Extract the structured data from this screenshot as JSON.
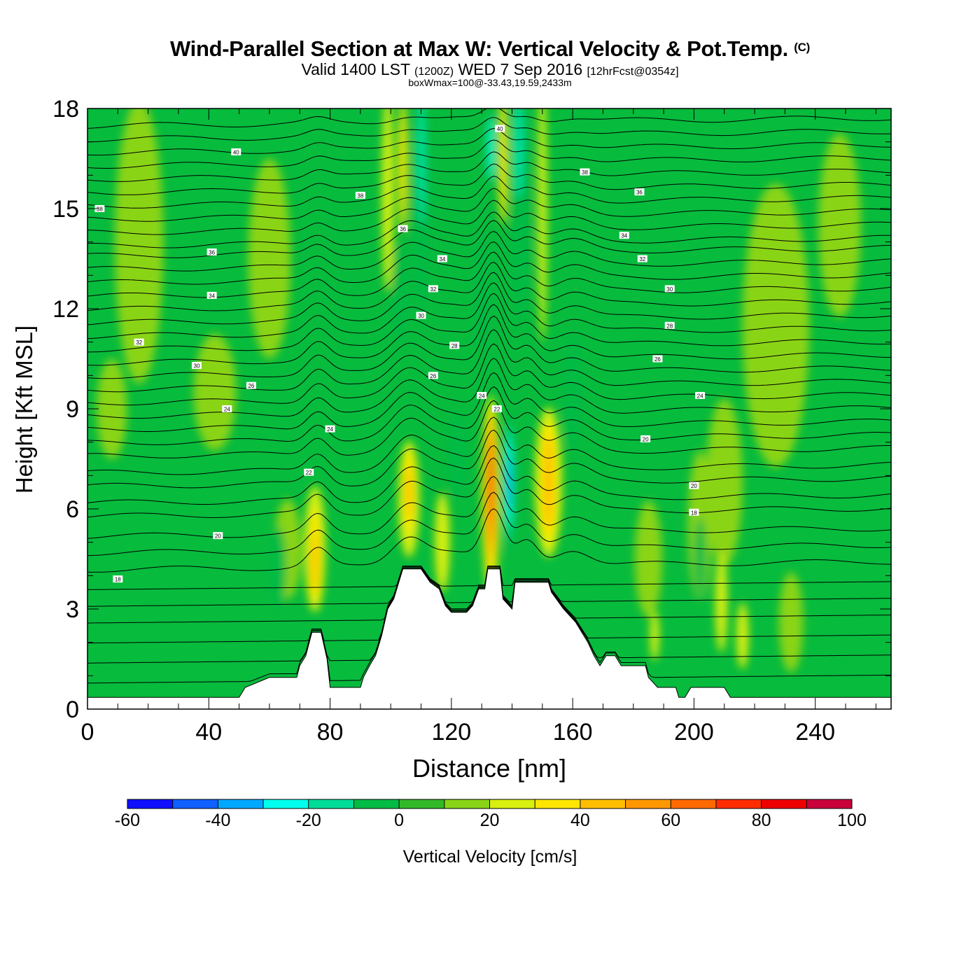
{
  "header": {
    "title_main": "Wind-Parallel Section at Max W: Vertical Velocity & Pot.Temp.",
    "title_mark": "(C)",
    "valid_prefix": "Valid 1400 LST",
    "valid_zulu": "(1200Z)",
    "valid_date": "WED 7 Sep 2016",
    "forecast": "[12hrFcst@0354z]",
    "box_info": "boxWmax=100@-33.43,19.59,2433m"
  },
  "colors": {
    "palette": [
      "#1010ff",
      "#1060ff",
      "#00a8ff",
      "#00ffee",
      "#00dd99",
      "#00bb44",
      "#33b828",
      "#8ad417",
      "#d8ef10",
      "#ffe600",
      "#ffbe00",
      "#ff9800",
      "#ff6a00",
      "#ff2d00",
      "#ee0000",
      "#c8003c"
    ],
    "contour": "#000000",
    "terrain": "#ffffff",
    "background": "#07bb3d"
  },
  "chart_data": {
    "type": "heatmap",
    "title": "Wind-Parallel Section at Max W: Vertical Velocity & Pot.Temp.",
    "xlabel": "Distance [nm]",
    "ylabel": "Height [Kft MSL]",
    "xlim": [
      0,
      265
    ],
    "ylim": [
      0,
      18
    ],
    "x_ticks": [
      0,
      40,
      80,
      120,
      160,
      200,
      240
    ],
    "y_ticks": [
      0,
      3,
      6,
      9,
      12,
      15,
      18
    ],
    "colorbar": {
      "label": "Vertical Velocity [cm/s]",
      "levels": [
        -60,
        -50,
        -40,
        -30,
        -20,
        -10,
        0,
        10,
        20,
        30,
        40,
        50,
        60,
        70,
        80,
        90,
        100
      ],
      "tick_labels": [
        "-60",
        "-40",
        "-20",
        "0",
        "20",
        "40",
        "60",
        "80",
        "100"
      ]
    },
    "terrain_kft": [
      [
        0,
        0.35
      ],
      [
        45,
        0.35
      ],
      [
        50,
        0.35
      ],
      [
        52,
        0.65
      ],
      [
        60,
        0.95
      ],
      [
        69,
        0.95
      ],
      [
        70,
        1.3
      ],
      [
        72,
        1.6
      ],
      [
        74,
        2.3
      ],
      [
        77,
        2.3
      ],
      [
        79,
        1.5
      ],
      [
        80,
        0.65
      ],
      [
        90,
        0.65
      ],
      [
        91,
        0.95
      ],
      [
        93,
        1.3
      ],
      [
        95,
        1.6
      ],
      [
        97,
        2.2
      ],
      [
        99,
        3.0
      ],
      [
        101,
        3.3
      ],
      [
        104,
        4.2
      ],
      [
        110,
        4.2
      ],
      [
        113,
        3.8
      ],
      [
        116,
        3.6
      ],
      [
        118,
        3.1
      ],
      [
        120,
        2.9
      ],
      [
        125,
        2.9
      ],
      [
        127,
        3.1
      ],
      [
        129,
        3.6
      ],
      [
        131,
        3.6
      ],
      [
        132,
        4.2
      ],
      [
        136,
        4.2
      ],
      [
        137,
        3.3
      ],
      [
        140,
        3.0
      ],
      [
        141,
        3.8
      ],
      [
        152,
        3.8
      ],
      [
        153,
        3.5
      ],
      [
        157,
        3.0
      ],
      [
        161,
        2.6
      ],
      [
        163,
        2.3
      ],
      [
        165,
        2.0
      ],
      [
        167,
        1.6
      ],
      [
        169,
        1.3
      ],
      [
        171,
        1.6
      ],
      [
        174,
        1.6
      ],
      [
        176,
        1.3
      ],
      [
        184,
        1.3
      ],
      [
        185,
        0.95
      ],
      [
        188,
        0.65
      ],
      [
        194,
        0.65
      ],
      [
        195,
        0.35
      ],
      [
        197,
        0.35
      ],
      [
        199,
        0.65
      ],
      [
        210,
        0.65
      ],
      [
        212,
        0.35
      ],
      [
        265,
        0.35
      ]
    ],
    "w_cells": [
      {
        "x": 17,
        "y": 14.0,
        "w": 16,
        "h": 8.5,
        "v": 10
      },
      {
        "x": 60,
        "y": 13.5,
        "w": 14,
        "h": 6.0,
        "v": 10
      },
      {
        "x": 42,
        "y": 9.5,
        "w": 14,
        "h": 3.5,
        "v": 10
      },
      {
        "x": 8,
        "y": 9.0,
        "w": 10,
        "h": 3.0,
        "v": 10
      },
      {
        "x": 227,
        "y": 11.5,
        "w": 22,
        "h": 8.5,
        "v": 10
      },
      {
        "x": 248,
        "y": 14.5,
        "w": 14,
        "h": 5.5,
        "v": 10
      },
      {
        "x": 210,
        "y": 6.8,
        "w": 12,
        "h": 5.0,
        "v": 10
      },
      {
        "x": 232,
        "y": 2.6,
        "w": 8,
        "h": 3.0,
        "v": 10
      },
      {
        "x": 66,
        "y": 4.8,
        "w": 9,
        "h": 3.0,
        "v": 10
      },
      {
        "x": 185,
        "y": 4.5,
        "w": 9,
        "h": 3.5,
        "v": 10
      },
      {
        "x": 202,
        "y": 5.5,
        "w": 8,
        "h": 4.5,
        "v": 10
      },
      {
        "x": 99,
        "y": 15.5,
        "w": 4,
        "h": 6.0,
        "v": 20
      },
      {
        "x": 150,
        "y": 15.0,
        "w": 3,
        "h": 8.0,
        "v": 20
      },
      {
        "x": 104,
        "y": 16.3,
        "w": 3,
        "h": 4.0,
        "v": 30
      },
      {
        "x": 137,
        "y": 16.5,
        "w": 3,
        "h": 4.0,
        "v": 30
      },
      {
        "x": 103,
        "y": 12.5,
        "w": 5,
        "h": 3.0,
        "v": -10
      },
      {
        "x": 130,
        "y": 12.5,
        "w": 4,
        "h": 3.5,
        "v": -10
      },
      {
        "x": 110,
        "y": 15.0,
        "w": 6,
        "h": 6.0,
        "v": -10
      },
      {
        "x": 143,
        "y": 15.0,
        "w": 6,
        "h": 7.0,
        "v": -10
      },
      {
        "x": 110,
        "y": 16.5,
        "w": 3,
        "h": 4.0,
        "v": -20
      },
      {
        "x": 142,
        "y": 16.8,
        "w": 4,
        "h": 3.0,
        "v": -20
      },
      {
        "x": 133,
        "y": 16.8,
        "w": 2,
        "h": 2.0,
        "v": -30
      },
      {
        "x": 160,
        "y": 9.5,
        "w": 6,
        "h": 3.5,
        "v": -10
      },
      {
        "x": 63,
        "y": 4.2,
        "w": 5,
        "h": 2.5,
        "v": -10
      },
      {
        "x": 122,
        "y": 7.6,
        "w": 6,
        "h": 2.5,
        "v": -10
      },
      {
        "x": 202,
        "y": 4.5,
        "w": 4,
        "h": 2.5,
        "v": -10
      },
      {
        "x": 106,
        "y": 6.3,
        "w": 7,
        "h": 3.5,
        "v": 20
      },
      {
        "x": 106,
        "y": 6.5,
        "w": 3,
        "h": 2.6,
        "v": 30
      },
      {
        "x": 106,
        "y": 6.5,
        "w": 2,
        "h": 1.6,
        "v": 40
      },
      {
        "x": 75,
        "y": 4.8,
        "w": 7,
        "h": 3.8,
        "v": 20
      },
      {
        "x": 75,
        "y": 4.6,
        "w": 3,
        "h": 2.8,
        "v": 30
      },
      {
        "x": 75,
        "y": 4.4,
        "w": 2,
        "h": 1.8,
        "v": 40
      },
      {
        "x": 117,
        "y": 5.0,
        "w": 5,
        "h": 3.0,
        "v": 20
      },
      {
        "x": 152,
        "y": 6.8,
        "w": 9,
        "h": 4.5,
        "v": 20
      },
      {
        "x": 152,
        "y": 6.8,
        "w": 5,
        "h": 3.6,
        "v": 30
      },
      {
        "x": 152,
        "y": 6.8,
        "w": 3,
        "h": 2.8,
        "v": 40
      },
      {
        "x": 133,
        "y": 6.4,
        "w": 6,
        "h": 6.0,
        "v": 20
      },
      {
        "x": 133,
        "y": 6.5,
        "w": 4,
        "h": 5.2,
        "v": 30
      },
      {
        "x": 133,
        "y": 6.6,
        "w": 3,
        "h": 4.6,
        "v": 40
      },
      {
        "x": 133,
        "y": 6.6,
        "w": 2.4,
        "h": 4.0,
        "v": 50
      },
      {
        "x": 133,
        "y": 6.6,
        "w": 2,
        "h": 3.2,
        "v": 60
      },
      {
        "x": 133,
        "y": 6.8,
        "w": 1.6,
        "h": 2.4,
        "v": 70
      },
      {
        "x": 133,
        "y": 6.9,
        "w": 1.2,
        "h": 1.6,
        "v": 80
      },
      {
        "x": 139,
        "y": 6.8,
        "w": 4,
        "h": 4.5,
        "v": -10
      },
      {
        "x": 139,
        "y": 6.8,
        "w": 3,
        "h": 3.5,
        "v": -20
      },
      {
        "x": 139,
        "y": 6.8,
        "w": 2,
        "h": 2.6,
        "v": -30
      },
      {
        "x": 139,
        "y": 6.8,
        "w": 1.2,
        "h": 1.6,
        "v": -40
      },
      {
        "x": 209,
        "y": 3.2,
        "w": 4,
        "h": 3.0,
        "v": 20
      },
      {
        "x": 216,
        "y": 2.2,
        "w": 4,
        "h": 2.0,
        "v": 20
      },
      {
        "x": 187,
        "y": 2.2,
        "w": 3,
        "h": 1.5,
        "v": 20
      }
    ],
    "isentropes": [
      {
        "y": 0.9,
        "label": ""
      },
      {
        "y": 1.5,
        "label": ""
      },
      {
        "y": 2.1,
        "label": ""
      },
      {
        "y": 2.7,
        "label": ""
      },
      {
        "y": 3.2,
        "label": ""
      },
      {
        "y": 3.7,
        "label": "18"
      },
      {
        "y": 4.3,
        "label": ""
      },
      {
        "y": 4.8,
        "label": ""
      },
      {
        "y": 5.3,
        "label": "20"
      },
      {
        "y": 5.9,
        "label": ""
      },
      {
        "y": 6.3,
        "label": ""
      },
      {
        "y": 6.8,
        "label": ""
      },
      {
        "y": 7.2,
        "label": "22"
      },
      {
        "y": 7.7,
        "label": ""
      },
      {
        "y": 8.1,
        "label": ""
      },
      {
        "y": 8.5,
        "label": "24"
      },
      {
        "y": 8.9,
        "label": ""
      },
      {
        "y": 9.3,
        "label": ""
      },
      {
        "y": 9.7,
        "label": "26"
      },
      {
        "y": 10.1,
        "label": ""
      },
      {
        "y": 10.5,
        "label": "28"
      },
      {
        "y": 10.9,
        "label": ""
      },
      {
        "y": 11.3,
        "label": ""
      },
      {
        "y": 11.7,
        "label": "30"
      },
      {
        "y": 12.1,
        "label": ""
      },
      {
        "y": 12.5,
        "label": "32"
      },
      {
        "y": 12.9,
        "label": ""
      },
      {
        "y": 13.3,
        "label": ""
      },
      {
        "y": 13.7,
        "label": "34"
      },
      {
        "y": 14.0,
        "label": ""
      },
      {
        "y": 14.4,
        "label": "36"
      },
      {
        "y": 14.8,
        "label": ""
      },
      {
        "y": 15.2,
        "label": "38"
      },
      {
        "y": 15.6,
        "label": ""
      },
      {
        "y": 16.0,
        "label": ""
      },
      {
        "y": 16.4,
        "label": "40"
      },
      {
        "y": 16.8,
        "label": ""
      },
      {
        "y": 17.2,
        "label": ""
      },
      {
        "y": 17.6,
        "label": ""
      }
    ],
    "isentrope_labels": [
      {
        "x": 10,
        "y": 3.9,
        "text": "18"
      },
      {
        "x": 43,
        "y": 5.2,
        "text": "20"
      },
      {
        "x": 184,
        "y": 8.1,
        "text": "20"
      },
      {
        "x": 200,
        "y": 5.9,
        "text": "18"
      },
      {
        "x": 200,
        "y": 6.7,
        "text": "20"
      },
      {
        "x": 73,
        "y": 7.1,
        "text": "22"
      },
      {
        "x": 135,
        "y": 9.0,
        "text": "22"
      },
      {
        "x": 46,
        "y": 9.0,
        "text": "24"
      },
      {
        "x": 80,
        "y": 8.4,
        "text": "24"
      },
      {
        "x": 130,
        "y": 9.4,
        "text": "24"
      },
      {
        "x": 202,
        "y": 9.4,
        "text": "24"
      },
      {
        "x": 54,
        "y": 9.7,
        "text": "26"
      },
      {
        "x": 114,
        "y": 10.0,
        "text": "26"
      },
      {
        "x": 188,
        "y": 10.5,
        "text": "26"
      },
      {
        "x": 36,
        "y": 10.3,
        "text": "30"
      },
      {
        "x": 17,
        "y": 11.0,
        "text": "32"
      },
      {
        "x": 110,
        "y": 11.8,
        "text": "30"
      },
      {
        "x": 121,
        "y": 10.9,
        "text": "28"
      },
      {
        "x": 192,
        "y": 11.5,
        "text": "28"
      },
      {
        "x": 41,
        "y": 12.4,
        "text": "34"
      },
      {
        "x": 114,
        "y": 12.6,
        "text": "32"
      },
      {
        "x": 192,
        "y": 12.6,
        "text": "30"
      },
      {
        "x": 41,
        "y": 13.7,
        "text": "36"
      },
      {
        "x": 117,
        "y": 13.5,
        "text": "34"
      },
      {
        "x": 183,
        "y": 13.5,
        "text": "32"
      },
      {
        "x": 104,
        "y": 14.4,
        "text": "36"
      },
      {
        "x": 177,
        "y": 14.2,
        "text": "34"
      },
      {
        "x": 4,
        "y": 15.0,
        "text": "38"
      },
      {
        "x": 90,
        "y": 15.4,
        "text": "38"
      },
      {
        "x": 182,
        "y": 15.5,
        "text": "36"
      },
      {
        "x": 49,
        "y": 16.7,
        "text": "40"
      },
      {
        "x": 164,
        "y": 16.1,
        "text": "38"
      },
      {
        "x": 136,
        "y": 17.4,
        "text": "40"
      }
    ]
  }
}
